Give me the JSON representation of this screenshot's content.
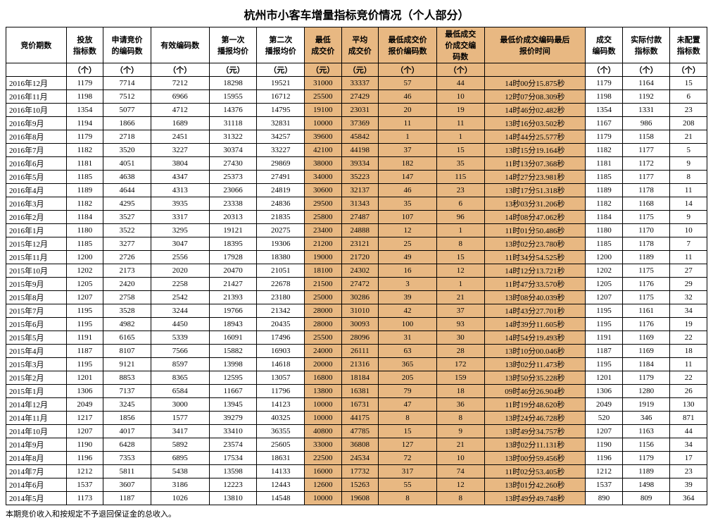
{
  "title": "杭州市小客车增量指标竞价情况（个人部分）",
  "footnote": "本期竞价收入和按规定不予退回保证金的总收入。",
  "colors": {
    "highlight_bg": "#e8b882",
    "border": "#000000",
    "bg": "#ffffff"
  },
  "columns": [
    {
      "label1": "竞价期数",
      "label2": "",
      "hl": false
    },
    {
      "label1": "投放",
      "label2": "指标数",
      "unit": "（个）",
      "hl": false
    },
    {
      "label1": "申请竞价",
      "label2": "的编码数",
      "unit": "（个）",
      "hl": false
    },
    {
      "label1": "有效编码数",
      "label2": "",
      "unit": "（个）",
      "hl": false
    },
    {
      "label1": "第一次",
      "label2": "播报均价",
      "unit": "（元）",
      "hl": false
    },
    {
      "label1": "第二次",
      "label2": "播报均价",
      "unit": "（元）",
      "hl": false
    },
    {
      "label1": "最低",
      "label2": "成交价",
      "unit": "（元）",
      "hl": true
    },
    {
      "label1": "平均",
      "label2": "成交价",
      "unit": "（元）",
      "hl": true
    },
    {
      "label1": "最低成交价",
      "label2": "报价编码数",
      "unit": "（个）",
      "hl": true
    },
    {
      "label1": "最低成交",
      "label2": "价成交编",
      "label3": "码数",
      "unit": "（个）",
      "hl": true
    },
    {
      "label1": "最低价成交编码最后",
      "label2": "报价时间",
      "unit": "",
      "hl": true
    },
    {
      "label1": "成交",
      "label2": "编码数",
      "unit": "（个）",
      "hl": false
    },
    {
      "label1": "实际付款",
      "label2": "指标数",
      "unit": "（个）",
      "hl": false
    },
    {
      "label1": "未配置",
      "label2": "指标数",
      "unit": "（个）",
      "hl": false
    }
  ],
  "rows": [
    [
      "2016年12月",
      "1179",
      "7714",
      "7212",
      "18298",
      "19521",
      "31000",
      "33337",
      "57",
      "44",
      "14时00分15.875秒",
      "1179",
      "1164",
      "15"
    ],
    [
      "2016年11月",
      "1198",
      "7512",
      "6966",
      "15955",
      "16712",
      "25500",
      "27429",
      "46",
      "10",
      "12时07分08.309秒",
      "1198",
      "1192",
      "6"
    ],
    [
      "2016年10月",
      "1354",
      "5077",
      "4712",
      "14376",
      "14795",
      "19100",
      "23031",
      "20",
      "19",
      "14时46分02.482秒",
      "1354",
      "1331",
      "23"
    ],
    [
      "2016年9月",
      "1194",
      "1866",
      "1689",
      "31118",
      "32831",
      "10000",
      "37369",
      "11",
      "11",
      "13时16分03.502秒",
      "1167",
      "986",
      "208"
    ],
    [
      "2016年8月",
      "1179",
      "2718",
      "2451",
      "31322",
      "34257",
      "39600",
      "45842",
      "1",
      "1",
      "14时44分25.577秒",
      "1179",
      "1158",
      "21"
    ],
    [
      "2016年7月",
      "1182",
      "3520",
      "3227",
      "30374",
      "33227",
      "42100",
      "44198",
      "37",
      "15",
      "13时15分19.164秒",
      "1182",
      "1177",
      "5"
    ],
    [
      "2016年6月",
      "1181",
      "4051",
      "3804",
      "27430",
      "29869",
      "38000",
      "39334",
      "182",
      "35",
      "11时13分07.368秒",
      "1181",
      "1172",
      "9"
    ],
    [
      "2016年5月",
      "1185",
      "4638",
      "4347",
      "25373",
      "27491",
      "34000",
      "35223",
      "147",
      "115",
      "14时27分23.981秒",
      "1185",
      "1177",
      "8"
    ],
    [
      "2016年4月",
      "1189",
      "4644",
      "4313",
      "23066",
      "24819",
      "30600",
      "32137",
      "46",
      "23",
      "13时17分51.318秒",
      "1189",
      "1178",
      "11"
    ],
    [
      "2016年3月",
      "1182",
      "4295",
      "3935",
      "23338",
      "24836",
      "29500",
      "31343",
      "35",
      "6",
      "13秒03分31.206秒",
      "1182",
      "1168",
      "14"
    ],
    [
      "2016年2月",
      "1184",
      "3527",
      "3317",
      "20313",
      "21835",
      "25800",
      "27487",
      "107",
      "96",
      "14时08分47.062秒",
      "1184",
      "1175",
      "9"
    ],
    [
      "2016年1月",
      "1180",
      "3522",
      "3295",
      "19121",
      "20275",
      "23400",
      "24888",
      "12",
      "1",
      "11时01分50.486秒",
      "1180",
      "1170",
      "10"
    ],
    [
      "2015年12月",
      "1185",
      "3277",
      "3047",
      "18395",
      "19306",
      "21200",
      "23121",
      "25",
      "8",
      "13时02分23.780秒",
      "1185",
      "1178",
      "7"
    ],
    [
      "2015年11月",
      "1200",
      "2726",
      "2556",
      "17928",
      "18380",
      "19000",
      "21720",
      "49",
      "15",
      "11时34分54.525秒",
      "1200",
      "1189",
      "11"
    ],
    [
      "2015年10月",
      "1202",
      "2173",
      "2020",
      "20470",
      "21051",
      "18100",
      "24302",
      "16",
      "12",
      "14时12分13.721秒",
      "1202",
      "1175",
      "27"
    ],
    [
      "2015年9月",
      "1205",
      "2420",
      "2258",
      "21427",
      "22678",
      "21500",
      "27472",
      "3",
      "1",
      "11时47分33.570秒",
      "1205",
      "1176",
      "29"
    ],
    [
      "2015年8月",
      "1207",
      "2758",
      "2542",
      "21393",
      "23180",
      "25000",
      "30286",
      "39",
      "21",
      "13时08分40.039秒",
      "1207",
      "1175",
      "32"
    ],
    [
      "2015年7月",
      "1195",
      "3528",
      "3244",
      "19766",
      "21342",
      "28000",
      "31010",
      "42",
      "37",
      "14时43分27.701秒",
      "1195",
      "1161",
      "34"
    ],
    [
      "2015年6月",
      "1195",
      "4982",
      "4450",
      "18943",
      "20435",
      "28000",
      "30093",
      "100",
      "93",
      "14时39分11.605秒",
      "1195",
      "1176",
      "19"
    ],
    [
      "2015年5月",
      "1191",
      "6165",
      "5339",
      "16091",
      "17496",
      "25500",
      "28096",
      "31",
      "30",
      "14时54分19.493秒",
      "1191",
      "1169",
      "22"
    ],
    [
      "2015年4月",
      "1187",
      "8107",
      "7566",
      "15882",
      "16903",
      "24000",
      "26111",
      "63",
      "28",
      "13时10分00.046秒",
      "1187",
      "1169",
      "18"
    ],
    [
      "2015年3月",
      "1195",
      "9121",
      "8597",
      "13998",
      "14618",
      "20000",
      "21316",
      "365",
      "172",
      "13时02分11.473秒",
      "1195",
      "1184",
      "11"
    ],
    [
      "2015年2月",
      "1201",
      "8853",
      "8365",
      "12595",
      "13057",
      "16800",
      "18184",
      "205",
      "159",
      "13时50分35.228秒",
      "1201",
      "1179",
      "22"
    ],
    [
      "2015年1月",
      "1306",
      "7137",
      "6584",
      "11667",
      "11796",
      "13800",
      "16381",
      "79",
      "18",
      "09时46分26.904秒",
      "1306",
      "1280",
      "26"
    ],
    [
      "2014年12月",
      "2049",
      "3245",
      "3000",
      "13945",
      "14123",
      "10000",
      "16731",
      "47",
      "36",
      "11时19分48.620秒",
      "2049",
      "1919",
      "130"
    ],
    [
      "2014年11月",
      "1217",
      "1856",
      "1577",
      "39279",
      "40325",
      "10000",
      "44175",
      "8",
      "8",
      "13时24分46.728秒",
      "520",
      "346",
      "871"
    ],
    [
      "2014年10月",
      "1207",
      "4017",
      "3417",
      "33410",
      "36355",
      "40800",
      "47785",
      "15",
      "9",
      "13时49分34.757秒",
      "1207",
      "1163",
      "44"
    ],
    [
      "2014年9月",
      "1190",
      "6428",
      "5892",
      "23574",
      "25605",
      "33000",
      "36808",
      "127",
      "21",
      "13时02分11.131秒",
      "1190",
      "1156",
      "34"
    ],
    [
      "2014年8月",
      "1196",
      "7353",
      "6895",
      "17534",
      "18631",
      "22500",
      "24534",
      "72",
      "10",
      "13时00分59.456秒",
      "1196",
      "1179",
      "17"
    ],
    [
      "2014年7月",
      "1212",
      "5811",
      "5438",
      "13598",
      "14133",
      "16000",
      "17732",
      "317",
      "74",
      "11时02分53.405秒",
      "1212",
      "1189",
      "23"
    ],
    [
      "2014年6月",
      "1537",
      "3607",
      "3186",
      "12223",
      "12443",
      "12600",
      "15263",
      "55",
      "12",
      "13时01分42.260秒",
      "1537",
      "1498",
      "39"
    ],
    [
      "2014年5月",
      "1173",
      "1187",
      "1026",
      "13810",
      "14548",
      "10000",
      "19608",
      "8",
      "8",
      "13时49分49.748秒",
      "890",
      "809",
      "364"
    ]
  ]
}
